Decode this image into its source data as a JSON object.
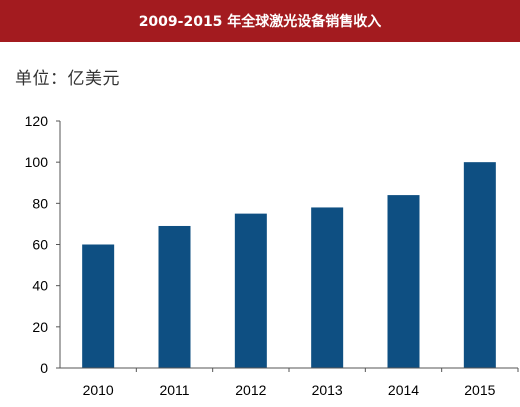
{
  "chart_data": {
    "type": "bar",
    "title": "2009-2015 年全球激光设备销售收入",
    "unit_label": "单位：亿美元",
    "categories": [
      "2010",
      "2011",
      "2012",
      "2013",
      "2014",
      "2015"
    ],
    "values": [
      60,
      69,
      75,
      78,
      84,
      100
    ],
    "ylim": [
      0,
      120
    ],
    "yticks": [
      "0",
      "20",
      "40",
      "60",
      "80",
      "100",
      "120"
    ],
    "grid": false,
    "bar_color": "#0e4f82",
    "title_bar_color": "#a31b1f"
  }
}
